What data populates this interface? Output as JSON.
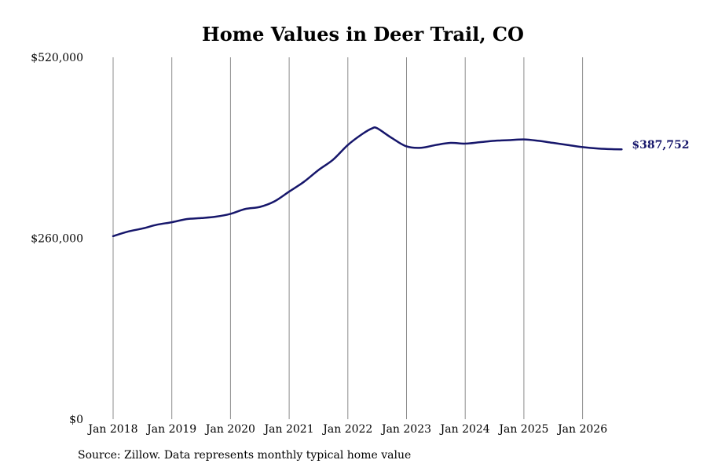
{
  "chart_data": {
    "type": "line",
    "title": "Home Values in Deer Trail, CO",
    "xlabel": "",
    "ylabel": "",
    "ylim": [
      0,
      520000
    ],
    "yticks": [
      {
        "value": 0,
        "label": "$0"
      },
      {
        "value": 260000,
        "label": "$260,000"
      },
      {
        "value": 520000,
        "label": "$520,000"
      }
    ],
    "xticks": [
      "Jan 2018",
      "Jan 2019",
      "Jan 2020",
      "Jan 2021",
      "Jan 2022",
      "Jan 2023",
      "Jan 2024",
      "Jan 2025",
      "Jan 2026"
    ],
    "grid": {
      "vertical": true,
      "horizontal": false
    },
    "line_color": "#16166b",
    "end_label": "$387,752",
    "series": [
      {
        "x": [
          "2018-01",
          "2018-04",
          "2018-07",
          "2018-10",
          "2019-01",
          "2019-04",
          "2019-07",
          "2019-10",
          "2020-01",
          "2020-04",
          "2020-07",
          "2020-10",
          "2021-01",
          "2021-04",
          "2021-07",
          "2021-10",
          "2022-01",
          "2022-04",
          "2022-06",
          "2022-07",
          "2022-10",
          "2023-01",
          "2023-04",
          "2023-07",
          "2023-10",
          "2024-01",
          "2024-04",
          "2024-07",
          "2024-10",
          "2025-01",
          "2025-04",
          "2025-07",
          "2025-10",
          "2026-01",
          "2026-04",
          "2026-07",
          "2026-09"
        ],
        "values": [
          263000,
          269500,
          274000,
          279500,
          283000,
          287500,
          289000,
          291000,
          295000,
          302000,
          305000,
          313000,
          327000,
          341000,
          358000,
          373000,
          394000,
          410000,
          418000,
          418000,
          404000,
          392000,
          390000,
          394000,
          397000,
          396000,
          398000,
          400000,
          401000,
          402000,
          400000,
          397000,
          394000,
          391000,
          389000,
          388000,
          387752
        ]
      }
    ],
    "source": "Source: Zillow. Data represents monthly typical home value"
  }
}
